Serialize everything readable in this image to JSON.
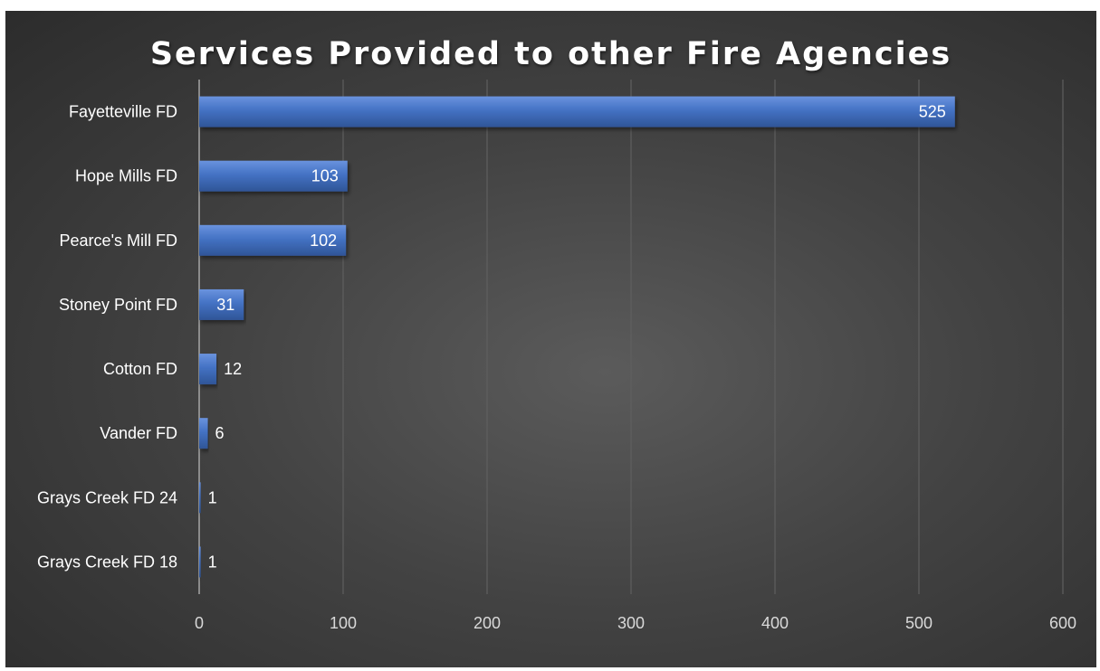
{
  "chart_data": {
    "type": "bar",
    "orientation": "horizontal",
    "title": "Services Provided to other Fire Agencies",
    "categories": [
      "Fayetteville FD",
      "Hope Mills FD",
      "Pearce's Mill FD",
      "Stoney Point FD",
      "Cotton FD",
      "Vander FD",
      "Grays Creek FD 24",
      "Grays Creek FD 18"
    ],
    "values": [
      525,
      103,
      102,
      31,
      12,
      6,
      1,
      1
    ],
    "data_labels": [
      "525",
      "103",
      "102",
      "31",
      "12",
      "6",
      "1",
      "1"
    ],
    "xlim": [
      0,
      600
    ],
    "x_ticks": [
      "0",
      "100",
      "200",
      "300",
      "400",
      "500",
      "600"
    ],
    "xlabel": "",
    "ylabel": "",
    "grid": true,
    "legend": "none",
    "colors": {
      "bar": "#4472c4",
      "background": "#404040",
      "gridline": "#5f5f5f",
      "text": "#ffffff"
    }
  }
}
